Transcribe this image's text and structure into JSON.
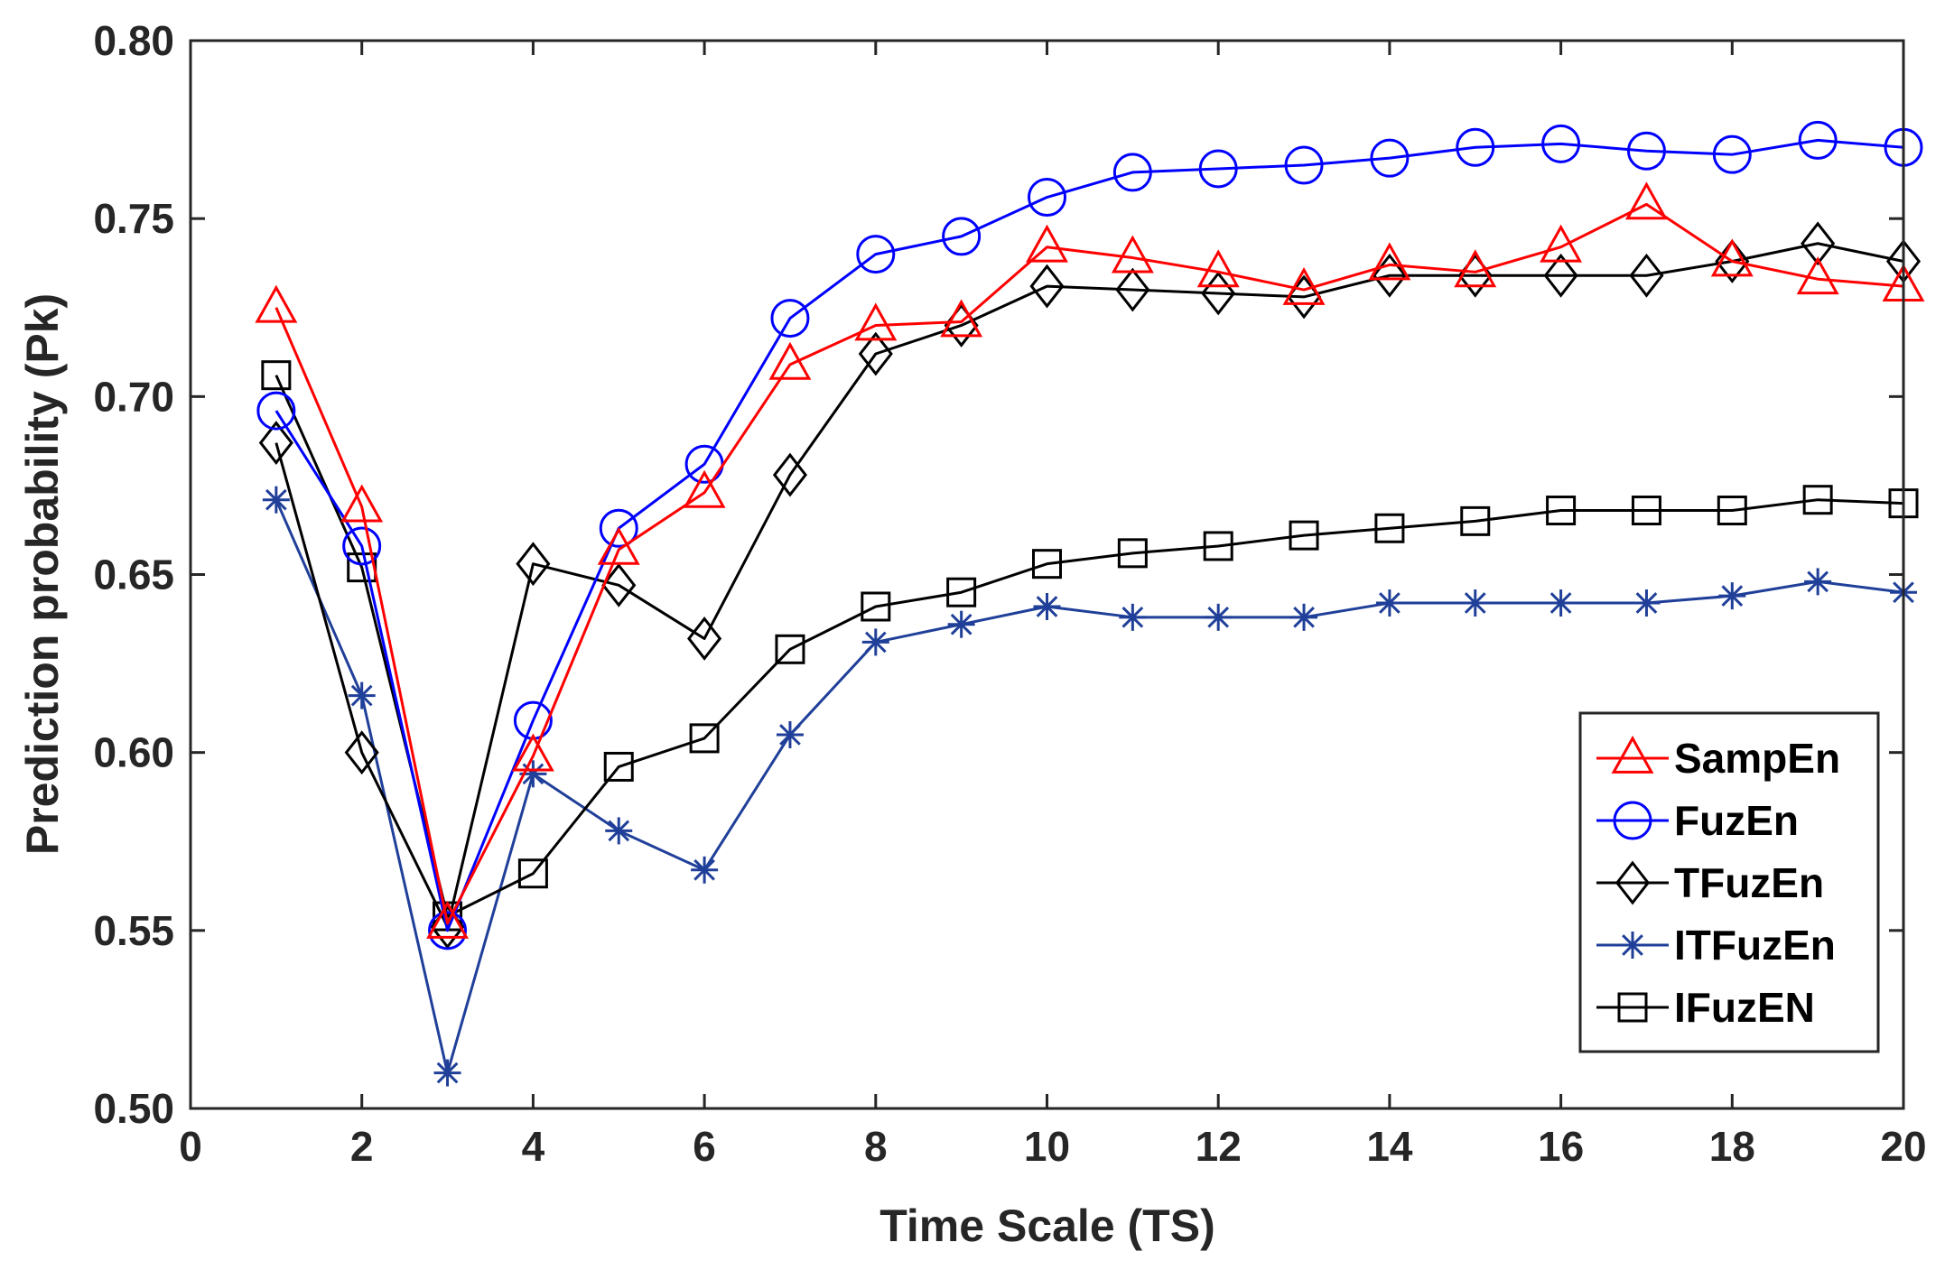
{
  "chart_data": {
    "type": "line",
    "title": "",
    "xlabel": "Time Scale (TS)",
    "ylabel": "Prediction probability (Pk)",
    "xlim": [
      0,
      20
    ],
    "ylim": [
      0.5,
      0.8
    ],
    "xticks": [
      0,
      2,
      4,
      6,
      8,
      10,
      12,
      14,
      16,
      18,
      20
    ],
    "yticks": [
      0.5,
      0.55,
      0.6,
      0.65,
      0.7,
      0.75,
      0.8
    ],
    "xtick_labels": [
      "0",
      "2",
      "4",
      "6",
      "8",
      "10",
      "12",
      "14",
      "16",
      "18",
      "20"
    ],
    "ytick_labels": [
      "0.50",
      "0.55",
      "0.60",
      "0.65",
      "0.70",
      "0.75",
      "0.80"
    ],
    "grid": false,
    "legend_position": "lower-right",
    "x": [
      1,
      2,
      3,
      4,
      5,
      6,
      7,
      8,
      9,
      10,
      11,
      12,
      13,
      14,
      15,
      16,
      17,
      18,
      19,
      20
    ],
    "series": [
      {
        "name": "SampEn",
        "color": "#ff0000",
        "marker": "triangle",
        "values": [
          0.725,
          0.669,
          0.552,
          0.599,
          0.657,
          0.673,
          0.709,
          0.72,
          0.721,
          0.742,
          0.739,
          0.735,
          0.73,
          0.737,
          0.735,
          0.742,
          0.754,
          0.738,
          0.733,
          0.731
        ]
      },
      {
        "name": "FuzEn",
        "color": "#0000ff",
        "marker": "circle",
        "values": [
          0.696,
          0.658,
          0.55,
          0.609,
          0.663,
          0.681,
          0.722,
          0.74,
          0.745,
          0.756,
          0.763,
          0.764,
          0.765,
          0.767,
          0.77,
          0.771,
          0.769,
          0.768,
          0.772,
          0.77
        ]
      },
      {
        "name": "TFuzEn",
        "color": "#000000",
        "marker": "diamond",
        "values": [
          0.687,
          0.6,
          0.551,
          0.653,
          0.647,
          0.632,
          0.678,
          0.712,
          0.72,
          0.731,
          0.73,
          0.729,
          0.728,
          0.734,
          0.734,
          0.734,
          0.734,
          0.738,
          0.743,
          0.738
        ]
      },
      {
        "name": "ITFuzEn",
        "color": "#1f3f99",
        "marker": "asterisk",
        "values": [
          0.671,
          0.616,
          0.51,
          0.594,
          0.578,
          0.567,
          0.605,
          0.631,
          0.636,
          0.641,
          0.638,
          0.638,
          0.638,
          0.642,
          0.642,
          0.642,
          0.642,
          0.644,
          0.648,
          0.645
        ]
      },
      {
        "name": "IFuzEN",
        "color": "#000000",
        "marker": "square",
        "values": [
          0.706,
          0.652,
          0.554,
          0.566,
          0.596,
          0.604,
          0.629,
          0.641,
          0.645,
          0.653,
          0.656,
          0.658,
          0.661,
          0.663,
          0.665,
          0.668,
          0.668,
          0.668,
          0.671,
          0.67
        ]
      }
    ]
  }
}
